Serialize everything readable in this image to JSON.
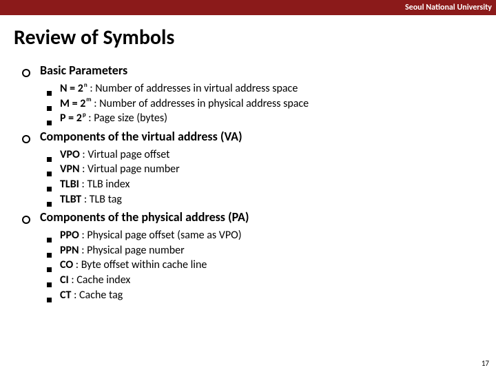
{
  "header": {
    "org": "Seoul National University",
    "bg_color": "#8b1a1a",
    "text_color": "#ffffff"
  },
  "title": "Review of Symbols",
  "sections": [
    {
      "title": "Basic Parameters",
      "items": [
        {
          "prefix": "N = 2",
          "exp": "n",
          "rest": " : Number of addresses in virtual address space"
        },
        {
          "prefix": "M = 2",
          "exp": "m",
          "rest": " : Number of addresses in physical address space"
        },
        {
          "prefix": "P = 2",
          "exp": "p",
          "rest": "  : Page size (bytes)"
        }
      ]
    },
    {
      "title": "Components of the virtual address (VA)",
      "items": [
        {
          "term": "VPO",
          "desc": ": Virtual page offset"
        },
        {
          "term": "VPN",
          "desc": ": Virtual page number"
        },
        {
          "term": "TLBI",
          "desc": ": TLB index"
        },
        {
          "term": "TLBT",
          "desc": ": TLB tag"
        }
      ]
    },
    {
      "title": "Components of the physical address (PA)",
      "items": [
        {
          "term": "PPO",
          "desc": ": Physical page offset (same as VPO)"
        },
        {
          "term": "PPN",
          "desc": ": Physical page number"
        },
        {
          "term": "CO",
          "desc": ": Byte offset within cache line"
        },
        {
          "term": "CI",
          "desc": ": Cache index"
        },
        {
          "term": "CT",
          "desc": ": Cache tag"
        }
      ]
    }
  ],
  "page_number": "17"
}
